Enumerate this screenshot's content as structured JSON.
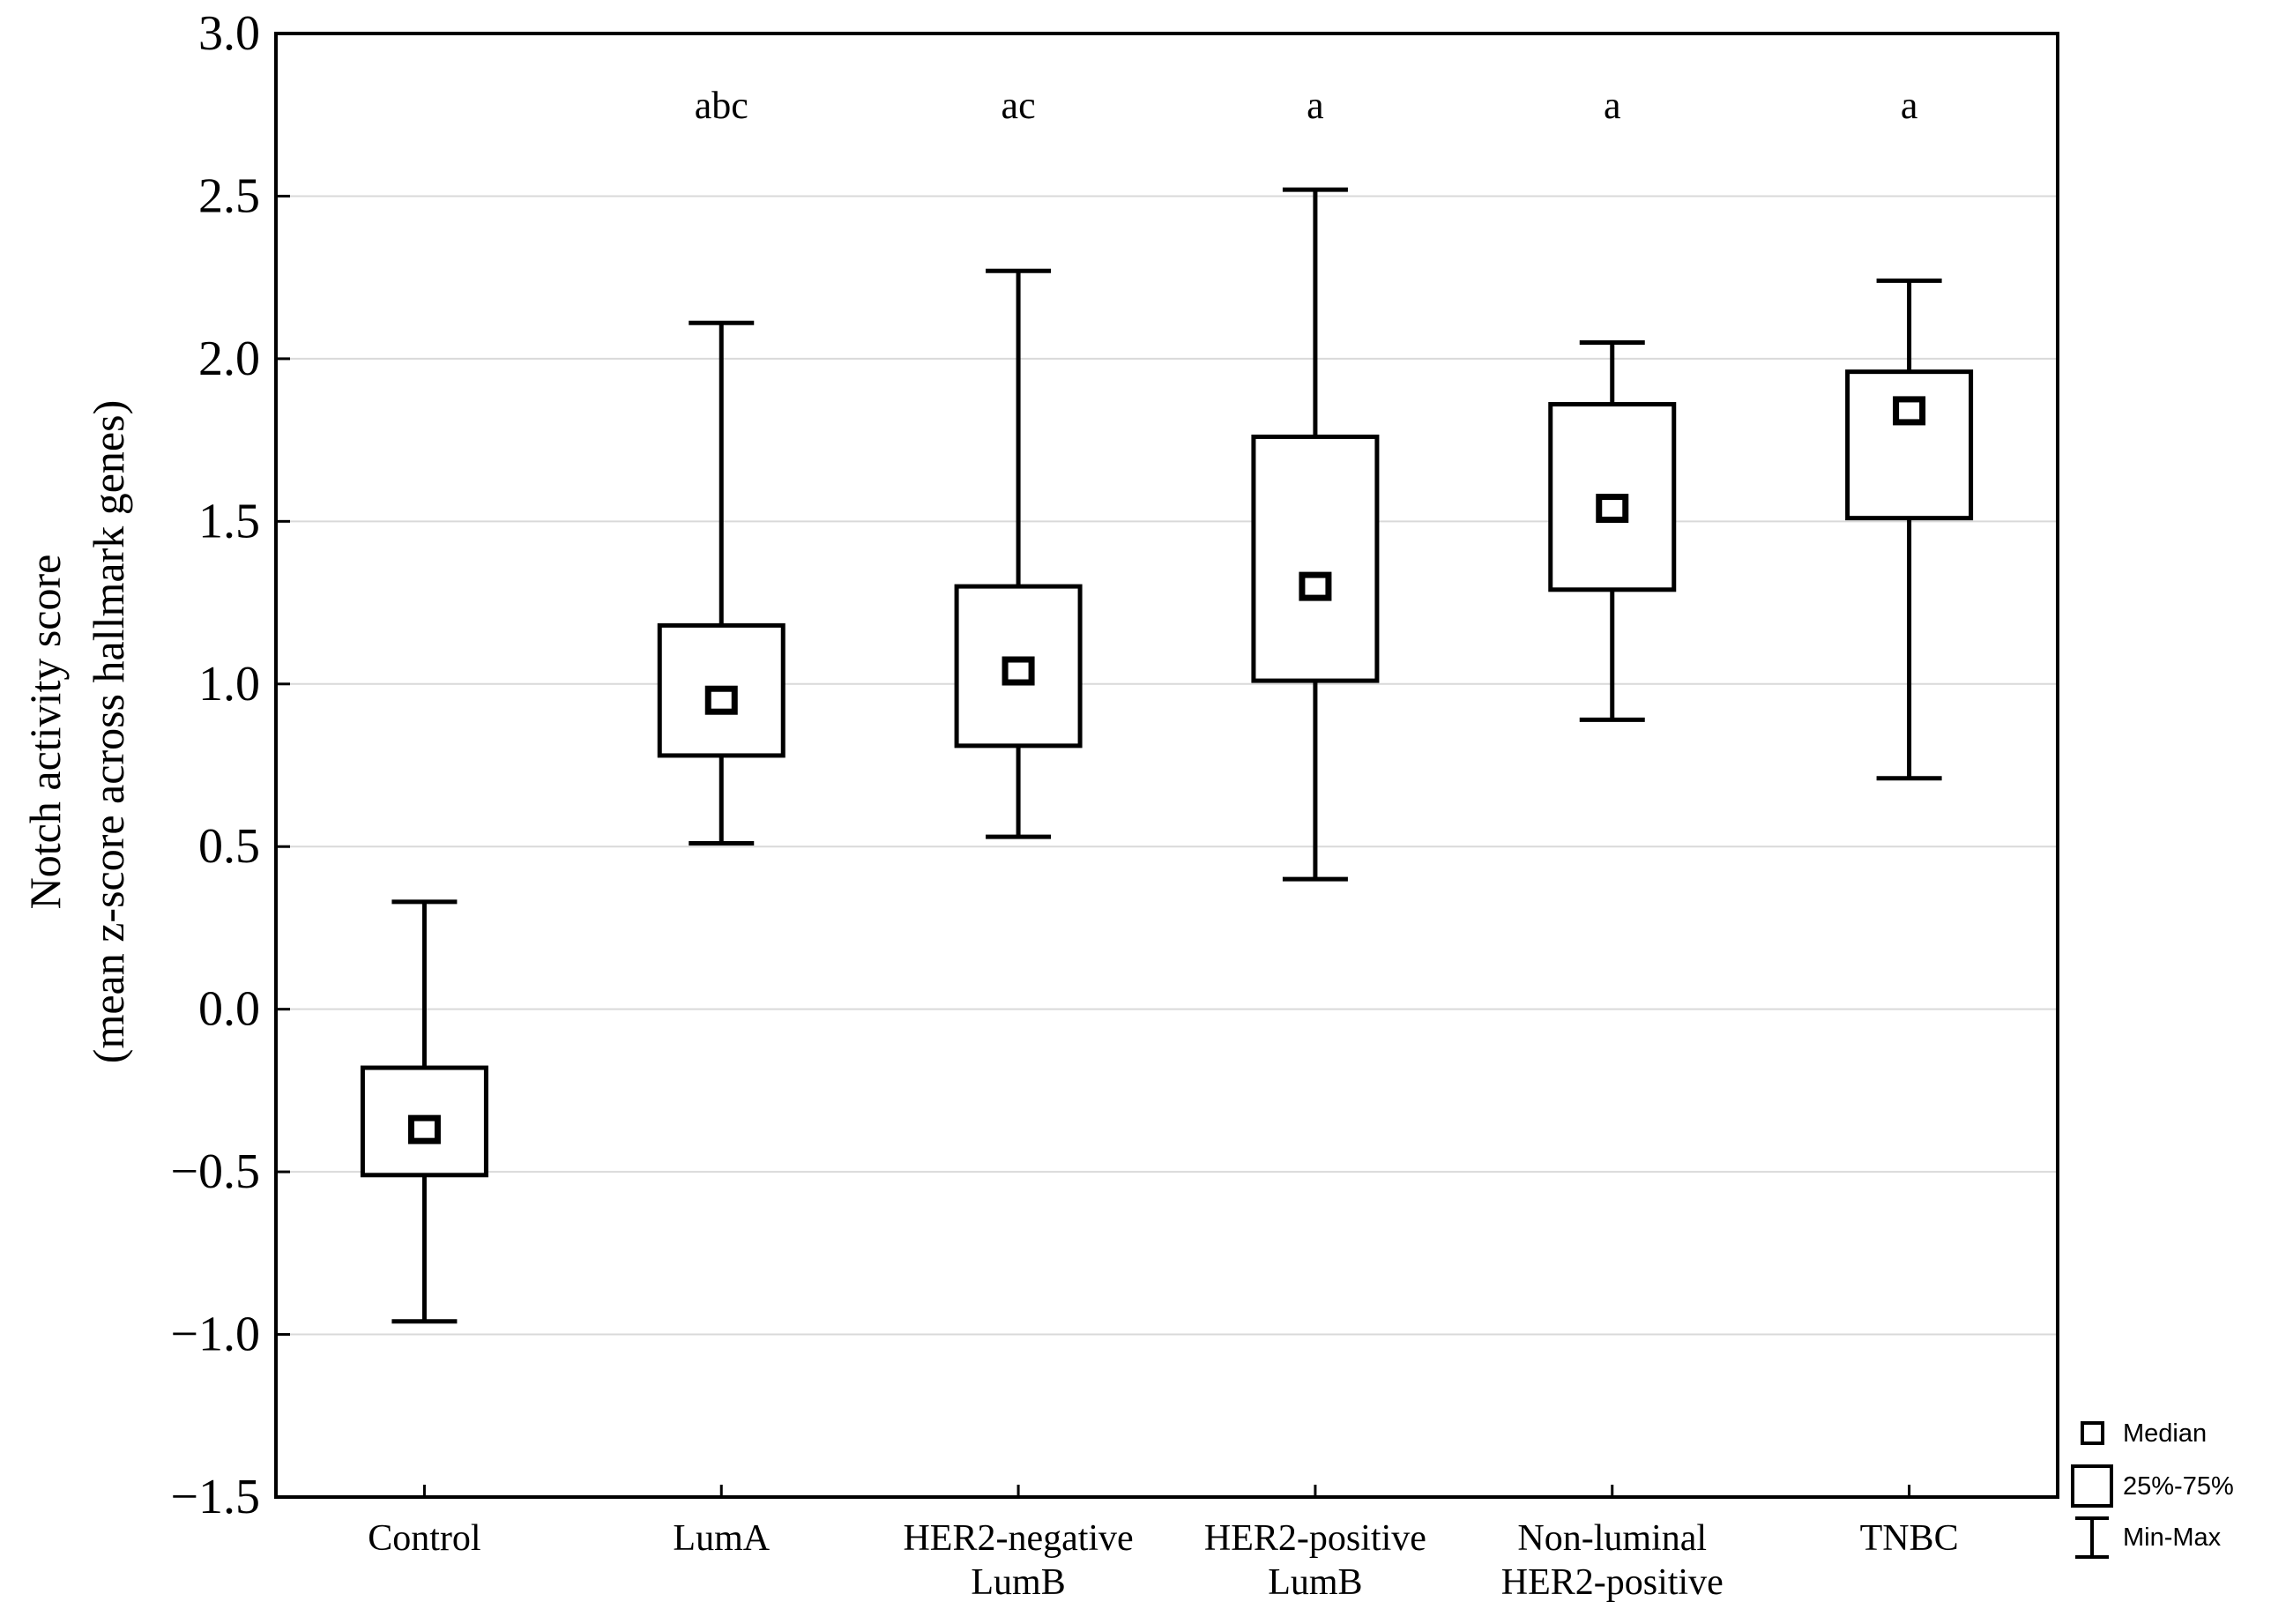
{
  "figure": {
    "y_axis_title_line1": "Notch activity score",
    "y_axis_title_line2": "(mean z-score across hallmark genes)"
  },
  "legend": {
    "position": "bottom-right",
    "items": [
      {
        "symbol": "median-square",
        "label": "Median"
      },
      {
        "symbol": "iqr-box",
        "label": "25%-75%"
      },
      {
        "symbol": "min-max-whisker",
        "label": "Min-Max"
      }
    ]
  },
  "chart_data": {
    "type": "box",
    "title": "",
    "xlabel": "",
    "ylabel": "Notch activity score (mean z-score across hallmark genes)",
    "ylim": [
      -1.5,
      3.0
    ],
    "yticks": [
      3.0,
      2.5,
      2.0,
      1.5,
      1.0,
      0.5,
      0.0,
      -0.5,
      -1.0,
      -1.5
    ],
    "ytick_labels": [
      "3.0",
      "2.5",
      "2.0",
      "1.5",
      "1.0",
      "0.5",
      "0.0",
      "−0.5",
      "−1.0",
      "−1.5"
    ],
    "grid": "horizontal",
    "legend_position": "bottom-right",
    "categories": [
      "Control",
      "LumA",
      "HER2-negative LumB",
      "HER2-positive LumB",
      "Non-luminal HER2-positive",
      "TNBC"
    ],
    "category_label_lines": [
      [
        "Control"
      ],
      [
        "LumA"
      ],
      [
        "HER2-negative",
        "LumB"
      ],
      [
        "HER2-positive",
        "LumB"
      ],
      [
        "Non-luminal",
        "HER2-positive"
      ],
      [
        "TNBC"
      ]
    ],
    "significance_letters": [
      "",
      "abc",
      "ac",
      "a",
      "a",
      "a"
    ],
    "series": [
      {
        "name": "Control",
        "min": -0.96,
        "q1": -0.51,
        "median": -0.37,
        "q3": -0.18,
        "max": 0.33
      },
      {
        "name": "LumA",
        "min": 0.51,
        "q1": 0.78,
        "median": 0.95,
        "q3": 1.18,
        "max": 2.11
      },
      {
        "name": "HER2-negative LumB",
        "min": 0.53,
        "q1": 0.81,
        "median": 1.04,
        "q3": 1.3,
        "max": 2.27
      },
      {
        "name": "HER2-positive LumB",
        "min": 0.4,
        "q1": 1.01,
        "median": 1.3,
        "q3": 1.76,
        "max": 2.52
      },
      {
        "name": "Non-luminal HER2-positive",
        "min": 0.89,
        "q1": 1.29,
        "median": 1.54,
        "q3": 1.86,
        "max": 2.05
      },
      {
        "name": "TNBC",
        "min": 0.71,
        "q1": 1.51,
        "median": 1.84,
        "q3": 1.96,
        "max": 2.24
      }
    ],
    "colors": {
      "box_stroke": "#000000",
      "grid": "#d9d9d9",
      "background": "#ffffff",
      "letters": "#303030",
      "frame": "#000000"
    }
  }
}
